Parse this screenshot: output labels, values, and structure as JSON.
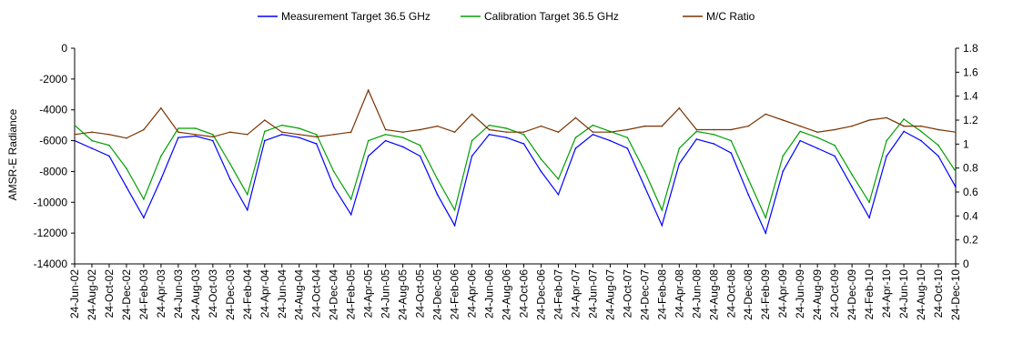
{
  "chart_data": {
    "type": "line",
    "title": "",
    "xlabel": "",
    "ylabel": "AMSR-E Radiance",
    "y2label": "",
    "ylim": [
      -14000,
      0
    ],
    "y2lim": [
      0,
      1.8
    ],
    "y_ticks": [
      0,
      -2000,
      -4000,
      -6000,
      -8000,
      -10000,
      -12000,
      -14000
    ],
    "y2_ticks": [
      0,
      0.2,
      0.4,
      0.6,
      0.8,
      1,
      1.2,
      1.4,
      1.6,
      1.8
    ],
    "x_ticks": [
      "24-Jun-02",
      "24-Aug-02",
      "24-Oct-02",
      "24-Dec-02",
      "24-Feb-03",
      "24-Apr-03",
      "24-Jun-03",
      "24-Aug-03",
      "24-Oct-03",
      "24-Dec-03",
      "24-Feb-04",
      "24-Apr-04",
      "24-Jun-04",
      "24-Aug-04",
      "24-Oct-04",
      "24-Dec-04",
      "24-Feb-05",
      "24-Apr-05",
      "24-Jun-05",
      "24-Aug-05",
      "24-Oct-05",
      "24-Dec-05",
      "24-Feb-06",
      "24-Apr-06",
      "24-Jun-06",
      "24-Aug-06",
      "24-Oct-06",
      "24-Dec-06",
      "24-Feb-07",
      "24-Apr-07",
      "24-Jun-07",
      "24-Aug-07",
      "24-Oct-07",
      "24-Dec-07",
      "24-Feb-08",
      "24-Apr-08",
      "24-Jun-08",
      "24-Aug-08",
      "24-Oct-08",
      "24-Dec-08",
      "24-Feb-09",
      "24-Apr-09",
      "24-Jun-09",
      "24-Aug-09",
      "24-Oct-09",
      "24-Dec-09",
      "24-Feb-10",
      "24-Apr-10",
      "24-Jun-10",
      "24-Aug-10",
      "24-Oct-10",
      "24-Dec-10"
    ],
    "grid": false,
    "legend_position": "top",
    "series": [
      {
        "name": "Measurement Target 36.5 GHz",
        "axis": "left",
        "color": "#0000ff",
        "x": [
          "24-Jun-02",
          "24-Aug-02",
          "24-Oct-02",
          "24-Dec-02",
          "24-Feb-03",
          "24-Apr-03",
          "24-Jun-03",
          "24-Aug-03",
          "24-Oct-03",
          "24-Dec-03",
          "24-Feb-04",
          "24-Apr-04",
          "24-Jun-04",
          "24-Aug-04",
          "24-Oct-04",
          "24-Dec-04",
          "24-Feb-05",
          "24-Apr-05",
          "24-Jun-05",
          "24-Aug-05",
          "24-Oct-05",
          "24-Dec-05",
          "24-Feb-06",
          "24-Apr-06",
          "24-Jun-06",
          "24-Aug-06",
          "24-Oct-06",
          "24-Dec-06",
          "24-Feb-07",
          "24-Apr-07",
          "24-Jun-07",
          "24-Aug-07",
          "24-Oct-07",
          "24-Dec-07",
          "24-Feb-08",
          "24-Apr-08",
          "24-Jun-08",
          "24-Aug-08",
          "24-Oct-08",
          "24-Dec-08",
          "24-Feb-09",
          "24-Apr-09",
          "24-Jun-09",
          "24-Aug-09",
          "24-Oct-09",
          "24-Dec-09",
          "24-Feb-10",
          "24-Apr-10",
          "24-Jun-10",
          "24-Aug-10",
          "24-Oct-10",
          "24-Dec-10"
        ],
        "values": [
          -6000,
          -6500,
          -7000,
          -9000,
          -11000,
          -8500,
          -5800,
          -5700,
          -6000,
          -8500,
          -10500,
          -6000,
          -5600,
          -5800,
          -6200,
          -9000,
          -10800,
          -7000,
          -6000,
          -6400,
          -7000,
          -9500,
          -11500,
          -7000,
          -5600,
          -5800,
          -6200,
          -8000,
          -9500,
          -6500,
          -5600,
          -6000,
          -6500,
          -9000,
          -11500,
          -7500,
          -5900,
          -6200,
          -6800,
          -9500,
          -12000,
          -8000,
          -6000,
          -6500,
          -7000,
          -9000,
          -11000,
          -7000,
          -5400,
          -6000,
          -7000,
          -9000
        ]
      },
      {
        "name": "Calibration Target 36.5 GHz",
        "axis": "left",
        "color": "#00a000",
        "x": [
          "24-Jun-02",
          "24-Aug-02",
          "24-Oct-02",
          "24-Dec-02",
          "24-Feb-03",
          "24-Apr-03",
          "24-Jun-03",
          "24-Aug-03",
          "24-Oct-03",
          "24-Dec-03",
          "24-Feb-04",
          "24-Apr-04",
          "24-Jun-04",
          "24-Aug-04",
          "24-Oct-04",
          "24-Dec-04",
          "24-Feb-05",
          "24-Apr-05",
          "24-Jun-05",
          "24-Aug-05",
          "24-Oct-05",
          "24-Dec-05",
          "24-Feb-06",
          "24-Apr-06",
          "24-Jun-06",
          "24-Aug-06",
          "24-Oct-06",
          "24-Dec-06",
          "24-Feb-07",
          "24-Apr-07",
          "24-Jun-07",
          "24-Aug-07",
          "24-Oct-07",
          "24-Dec-07",
          "24-Feb-08",
          "24-Apr-08",
          "24-Jun-08",
          "24-Aug-08",
          "24-Oct-08",
          "24-Dec-08",
          "24-Feb-09",
          "24-Apr-09",
          "24-Jun-09",
          "24-Aug-09",
          "24-Oct-09",
          "24-Dec-09",
          "24-Feb-10",
          "24-Apr-10",
          "24-Jun-10",
          "24-Aug-10",
          "24-Oct-10",
          "24-Dec-10"
        ],
        "values": [
          -5000,
          -6000,
          -6300,
          -7800,
          -9800,
          -7000,
          -5200,
          -5200,
          -5600,
          -7500,
          -9500,
          -5400,
          -5000,
          -5200,
          -5600,
          -8000,
          -9800,
          -6000,
          -5600,
          -5800,
          -6300,
          -8500,
          -10500,
          -6000,
          -5000,
          -5200,
          -5600,
          -7200,
          -8500,
          -5800,
          -5000,
          -5400,
          -5800,
          -8000,
          -10500,
          -6500,
          -5400,
          -5600,
          -6000,
          -8500,
          -11000,
          -7000,
          -5400,
          -5800,
          -6300,
          -8200,
          -10000,
          -6000,
          -4600,
          -5400,
          -6300,
          -8000
        ]
      },
      {
        "name": "M/C Ratio",
        "axis": "right",
        "color": "#7a3300",
        "x": [
          "24-Jun-02",
          "24-Aug-02",
          "24-Oct-02",
          "24-Dec-02",
          "24-Feb-03",
          "24-Apr-03",
          "24-Jun-03",
          "24-Aug-03",
          "24-Oct-03",
          "24-Dec-03",
          "24-Feb-04",
          "24-Apr-04",
          "24-Jun-04",
          "24-Aug-04",
          "24-Oct-04",
          "24-Dec-04",
          "24-Feb-05",
          "24-Apr-05",
          "24-Jun-05",
          "24-Aug-05",
          "24-Oct-05",
          "24-Dec-05",
          "24-Feb-06",
          "24-Apr-06",
          "24-Jun-06",
          "24-Aug-06",
          "24-Oct-06",
          "24-Dec-06",
          "24-Feb-07",
          "24-Apr-07",
          "24-Jun-07",
          "24-Aug-07",
          "24-Oct-07",
          "24-Dec-07",
          "24-Feb-08",
          "24-Apr-08",
          "24-Jun-08",
          "24-Aug-08",
          "24-Oct-08",
          "24-Dec-08",
          "24-Feb-09",
          "24-Apr-09",
          "24-Jun-09",
          "24-Aug-09",
          "24-Oct-09",
          "24-Dec-09",
          "24-Feb-10",
          "24-Apr-10",
          "24-Jun-10",
          "24-Aug-10",
          "24-Oct-10",
          "24-Dec-10"
        ],
        "values": [
          1.08,
          1.1,
          1.08,
          1.05,
          1.12,
          1.3,
          1.1,
          1.08,
          1.06,
          1.1,
          1.08,
          1.2,
          1.1,
          1.08,
          1.06,
          1.08,
          1.1,
          1.45,
          1.12,
          1.1,
          1.12,
          1.15,
          1.1,
          1.25,
          1.12,
          1.1,
          1.1,
          1.15,
          1.1,
          1.22,
          1.1,
          1.1,
          1.12,
          1.15,
          1.15,
          1.3,
          1.12,
          1.12,
          1.12,
          1.15,
          1.25,
          1.2,
          1.15,
          1.1,
          1.12,
          1.15,
          1.2,
          1.22,
          1.15,
          1.15,
          1.12,
          1.1
        ]
      }
    ]
  }
}
